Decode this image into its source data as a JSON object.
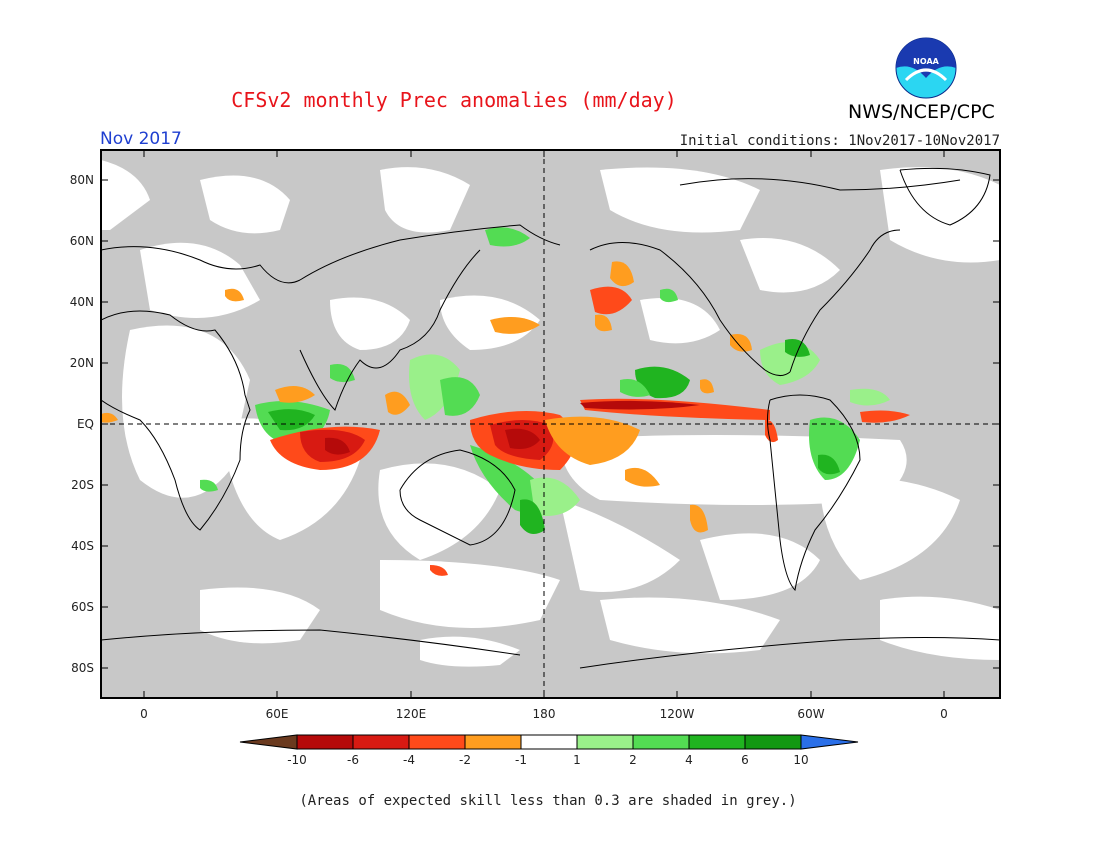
{
  "title": "CFSv2 monthly Prec anomalies (mm/day)",
  "agency": "NWS/NCEP/CPC",
  "logo_text": "NOAA",
  "month_label": "Nov 2017",
  "initial_conditions": "Initial conditions: 1Nov2017-10Nov2017",
  "lat_ticks": [
    "80N",
    "60N",
    "40N",
    "20N",
    "EQ",
    "20S",
    "40S",
    "60S",
    "80S"
  ],
  "lon_ticks": [
    "0",
    "60E",
    "120E",
    "180",
    "120W",
    "60W",
    "0"
  ],
  "colorbar": {
    "labels": [
      "-10",
      "-6",
      "-4",
      "-2",
      "-1",
      "1",
      "2",
      "4",
      "6",
      "10"
    ],
    "colors": [
      "#6b3a1f",
      "#b50a0a",
      "#d81a12",
      "#ff4a1a",
      "#ff9d1f",
      "#ffffff",
      "#9af08a",
      "#53dc53",
      "#20b420",
      "#129812",
      "#2a6fe8"
    ]
  },
  "note": "(Areas of expected skill less than 0.3 are shaded in grey.)",
  "colors": {
    "grey_mask": "#c8c8c8",
    "title": "#e8141b",
    "month": "#1f3fd0"
  }
}
